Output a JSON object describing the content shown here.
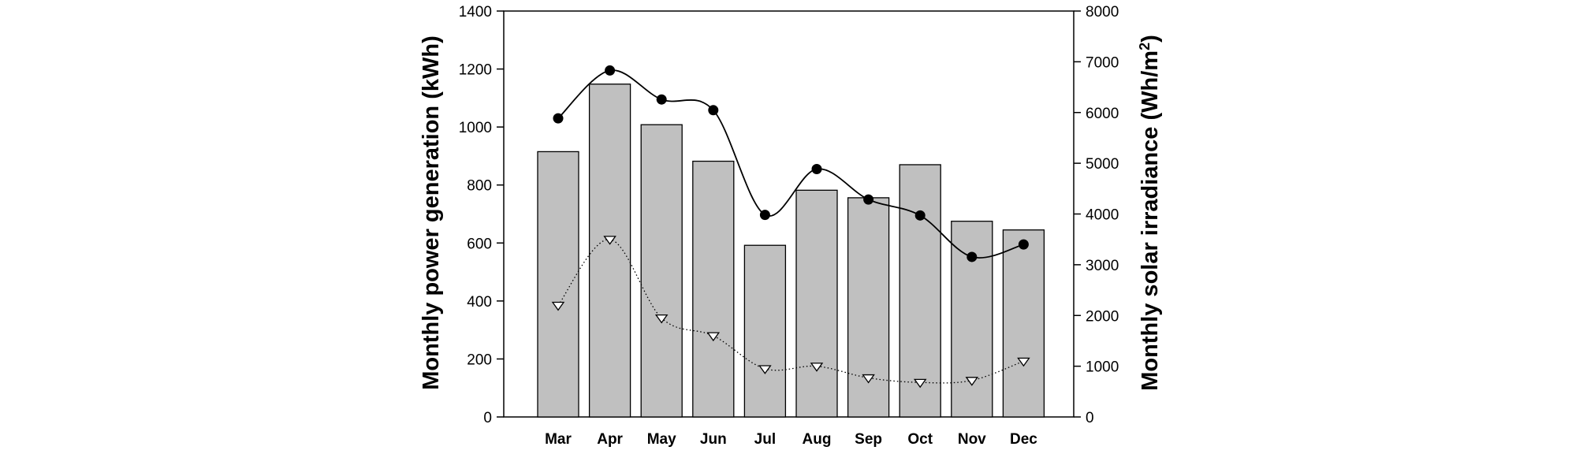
{
  "chart_data": {
    "type": "bar",
    "categories": [
      "Mar",
      "Apr",
      "May",
      "Jun",
      "Jul",
      "Aug",
      "Sep",
      "Oct",
      "Nov",
      "Dec"
    ],
    "bars": {
      "values": [
        915,
        1148,
        1008,
        882,
        592,
        782,
        756,
        870,
        675,
        645
      ],
      "color": "#c0c0c0",
      "axis": "left"
    },
    "line_series": [
      {
        "values": [
          1030,
          1195,
          1095,
          1058,
          697,
          855,
          750,
          695,
          552,
          595
        ],
        "marker": "filled-circle",
        "line_style": "solid",
        "axis": "left"
      },
      {
        "values": [
          2200,
          3500,
          1950,
          1600,
          950,
          1000,
          770,
          680,
          720,
          1100
        ],
        "marker": "open-triangle-down",
        "line_style": "dotted",
        "axis": "right"
      }
    ],
    "y_left": {
      "label": "Monthly power generation (kWh)",
      "range": [
        0,
        1400
      ],
      "ticks": [
        "0",
        "200",
        "400",
        "600",
        "800",
        "1000",
        "1200",
        "1400"
      ]
    },
    "y_right": {
      "label_main": "Monthly solar irradiance (Wh/m",
      "label_sup": "2",
      "label_end": ")",
      "range": [
        0,
        8000
      ],
      "ticks": [
        "0",
        "1000",
        "2000",
        "3000",
        "4000",
        "5000",
        "6000",
        "7000",
        "8000"
      ]
    },
    "grid": false,
    "legend": "none"
  }
}
